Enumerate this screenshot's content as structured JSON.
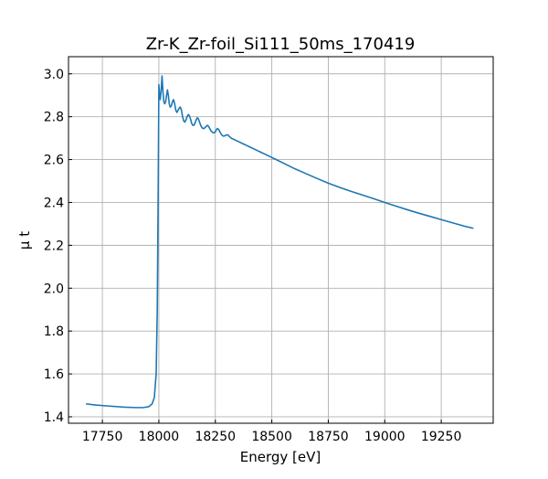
{
  "chart_data": {
    "type": "line",
    "title": "Zr-K_Zr-foil_Si111_50ms_170419",
    "xlabel": "Energy [eV]",
    "ylabel": "μ t",
    "xlim": [
      17600,
      19480
    ],
    "ylim": [
      1.37,
      3.08
    ],
    "xticks": [
      17750,
      18000,
      18250,
      18500,
      18750,
      19000,
      19250
    ],
    "yticks": [
      1.4,
      1.6,
      1.8,
      2.0,
      2.2,
      2.4,
      2.6,
      2.8,
      3.0
    ],
    "xtick_labels": [
      "17750",
      "18000",
      "18250",
      "18500",
      "18750",
      "19000",
      "19250"
    ],
    "ytick_labels": [
      "1.4",
      "1.6",
      "1.8",
      "2.0",
      "2.2",
      "2.4",
      "2.6",
      "2.8",
      "3.0"
    ],
    "grid": true,
    "legend": "none",
    "series": [
      {
        "color": "#1f77b4",
        "x": [
          17680,
          17720,
          17780,
          17850,
          17900,
          17930,
          17955,
          17970,
          17980,
          17988,
          17993,
          17997,
          18000,
          18003,
          18006,
          18010,
          18014,
          18018,
          18022,
          18026,
          18030,
          18034,
          18038,
          18042,
          18046,
          18050,
          18055,
          18060,
          18065,
          18070,
          18075,
          18080,
          18085,
          18090,
          18095,
          18100,
          18105,
          18110,
          18115,
          18120,
          18125,
          18130,
          18135,
          18140,
          18145,
          18150,
          18155,
          18160,
          18165,
          18170,
          18175,
          18180,
          18185,
          18190,
          18195,
          18200,
          18205,
          18210,
          18215,
          18220,
          18225,
          18230,
          18235,
          18240,
          18245,
          18250,
          18255,
          18260,
          18265,
          18270,
          18275,
          18280,
          18285,
          18290,
          18295,
          18300,
          18305,
          18310,
          18315,
          18320,
          18325,
          18330,
          18335,
          18340,
          18350,
          18360,
          18370,
          18380,
          18390,
          18400,
          18410,
          18420,
          18430,
          18440,
          18450,
          18460,
          18470,
          18480,
          18490,
          18500,
          18525,
          18550,
          18600,
          18650,
          18700,
          18750,
          18800,
          18850,
          18900,
          18950,
          19000,
          19050,
          19100,
          19150,
          19200,
          19250,
          19300,
          19350,
          19390
        ],
        "y": [
          1.46,
          1.455,
          1.45,
          1.445,
          1.443,
          1.443,
          1.447,
          1.46,
          1.49,
          1.6,
          1.9,
          2.45,
          2.95,
          2.9,
          2.88,
          2.92,
          2.99,
          2.92,
          2.87,
          2.86,
          2.87,
          2.9,
          2.925,
          2.9,
          2.86,
          2.845,
          2.85,
          2.87,
          2.88,
          2.86,
          2.83,
          2.82,
          2.83,
          2.84,
          2.845,
          2.83,
          2.8,
          2.78,
          2.775,
          2.785,
          2.8,
          2.81,
          2.805,
          2.79,
          2.77,
          2.76,
          2.76,
          2.77,
          2.785,
          2.795,
          2.79,
          2.775,
          2.76,
          2.75,
          2.745,
          2.745,
          2.75,
          2.755,
          2.76,
          2.755,
          2.745,
          2.735,
          2.73,
          2.725,
          2.725,
          2.73,
          2.74,
          2.745,
          2.74,
          2.73,
          2.72,
          2.713,
          2.71,
          2.71,
          2.713,
          2.715,
          2.715,
          2.71,
          2.705,
          2.7,
          2.697,
          2.695,
          2.693,
          2.69,
          2.685,
          2.68,
          2.675,
          2.67,
          2.665,
          2.66,
          2.655,
          2.65,
          2.645,
          2.64,
          2.635,
          2.63,
          2.625,
          2.62,
          2.615,
          2.61,
          2.597,
          2.584,
          2.558,
          2.535,
          2.512,
          2.49,
          2.47,
          2.452,
          2.435,
          2.418,
          2.4,
          2.383,
          2.366,
          2.35,
          2.335,
          2.32,
          2.305,
          2.29,
          2.28
        ]
      }
    ]
  }
}
